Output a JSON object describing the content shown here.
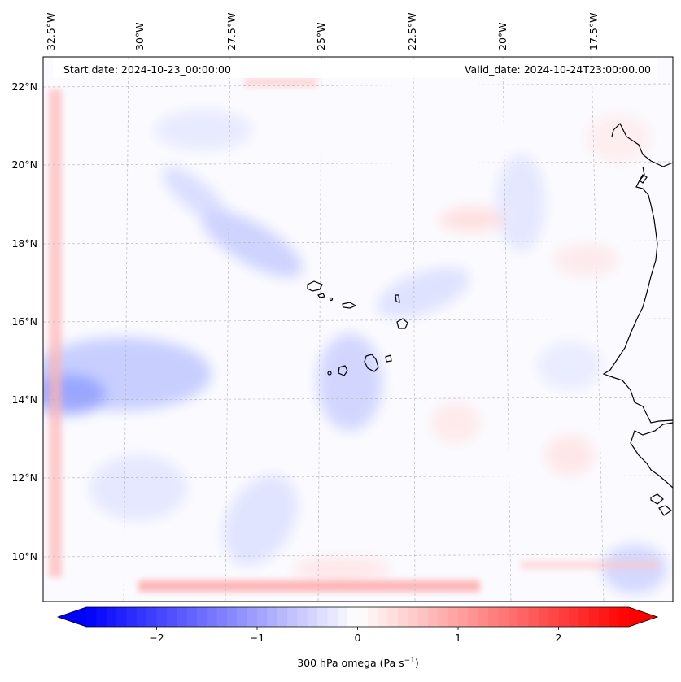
{
  "map": {
    "top_labels": [
      "32.5°W",
      "30°W",
      "27.5°W",
      "25°W",
      "22.5°W",
      "20°W",
      "17.5°W"
    ],
    "left_labels": [
      "22°N",
      "20°N",
      "18°N",
      "16°N",
      "14°N",
      "12°N",
      "10°N"
    ],
    "start_date": "Start date: 2024-10-23_00:00:00",
    "valid_date": "Valid_date: 2024-10-24T23:00:00.00",
    "field": "300 hPa omega",
    "units_label": "300 hPa omega (Pa s",
    "units_exponent": "−1",
    "units_close": ")"
  },
  "colorbar": {
    "min": -2.7,
    "max": 2.7,
    "ticks": [
      {
        "value": -2,
        "label": "−2"
      },
      {
        "value": -1,
        "label": "−1"
      },
      {
        "value": 0,
        "label": "0"
      },
      {
        "value": 1,
        "label": "1"
      },
      {
        "value": 2,
        "label": "2"
      }
    ],
    "low_color": "#0000ff",
    "mid_color": "#ffffff",
    "high_color": "#ff0000",
    "extend": "both"
  },
  "colors": {
    "coastline": "#000000",
    "gridline": "#b0b0b0"
  }
}
